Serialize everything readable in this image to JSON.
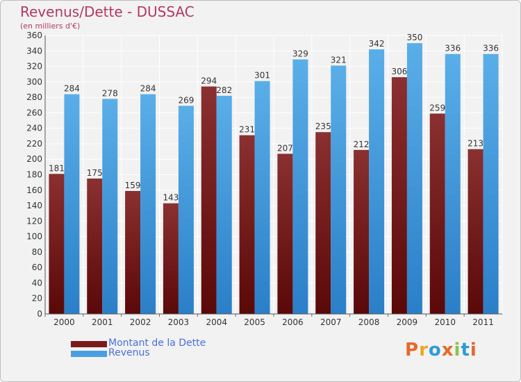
{
  "title": "Revenus/Dette - DUSSAC",
  "subtitle": "(en milliers d'€)",
  "legend": [
    {
      "label": "Montant de la Dette",
      "color": "#7a1c1c"
    },
    {
      "label": "Revenus",
      "color": "#4a9fe4"
    }
  ],
  "logo": {
    "text": "Proxiti",
    "colors": [
      "#e8682a",
      "#f0a520",
      "#2e9bd6",
      "#e8682a",
      "#8bc34a",
      "#2e9bd6",
      "#e8682a"
    ]
  },
  "chart_data": {
    "type": "bar",
    "title": "Revenus/Dette - DUSSAC",
    "ylabel": "(en milliers d'€)",
    "xlabel": "",
    "categories": [
      "2000",
      "2001",
      "2002",
      "2003",
      "2004",
      "2005",
      "2006",
      "2007",
      "2008",
      "2009",
      "2010",
      "2011"
    ],
    "series": [
      {
        "name": "Montant de la Dette",
        "color": "#7a1c1c",
        "values": [
          181,
          175,
          159,
          143,
          294,
          231,
          207,
          235,
          212,
          306,
          259,
          213
        ]
      },
      {
        "name": "Revenus",
        "color": "#4a9fe4",
        "values": [
          284,
          278,
          284,
          269,
          282,
          301,
          329,
          321,
          342,
          350,
          336,
          336
        ]
      }
    ],
    "ylim": [
      0,
      360
    ],
    "yticks": [
      0,
      20,
      40,
      60,
      80,
      100,
      120,
      140,
      160,
      180,
      200,
      220,
      240,
      260,
      280,
      300,
      320,
      340,
      360
    ],
    "grid": true,
    "legend_position": "bottom-left"
  }
}
